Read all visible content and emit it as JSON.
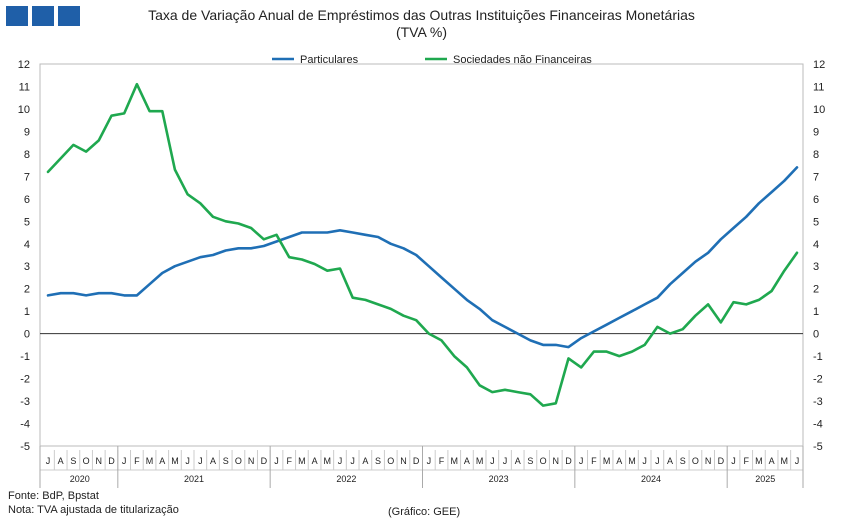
{
  "header": {
    "logo_icon": "gee-logo-icon"
  },
  "chart_data": {
    "type": "line",
    "title": "Taxa de Variação Anual de Empréstimos das Outras Instituições Financeiras Monetárias",
    "subtitle": "(TVA %)",
    "ylim": [
      -5,
      12
    ],
    "yticks": [
      12,
      11,
      10,
      9,
      8,
      7,
      6,
      5,
      4,
      3,
      2,
      1,
      0,
      -1,
      -2,
      -3,
      -4,
      -5
    ],
    "legend_position": "top-center",
    "grid": false,
    "months": [
      "J",
      "A",
      "S",
      "O",
      "N",
      "D",
      "J",
      "F",
      "M",
      "A",
      "M",
      "J",
      "J",
      "A",
      "S",
      "O",
      "N",
      "D",
      "J",
      "F",
      "M",
      "A",
      "M",
      "J",
      "J",
      "A",
      "S",
      "O",
      "N",
      "D",
      "J",
      "F",
      "M",
      "A",
      "M",
      "J",
      "J",
      "A",
      "S",
      "O",
      "N",
      "D",
      "J",
      "F",
      "M",
      "A",
      "M",
      "J",
      "J",
      "A",
      "S",
      "O",
      "N",
      "D",
      "J",
      "F",
      "M",
      "A",
      "M",
      "J"
    ],
    "years": [
      {
        "label": "2020",
        "start": 0,
        "count": 6
      },
      {
        "label": "2021",
        "start": 6,
        "count": 12
      },
      {
        "label": "2022",
        "start": 18,
        "count": 12
      },
      {
        "label": "2023",
        "start": 30,
        "count": 12
      },
      {
        "label": "2024",
        "start": 42,
        "count": 12
      },
      {
        "label": "2025",
        "start": 54,
        "count": 6
      }
    ],
    "series": [
      {
        "name": "Particulares",
        "color": "#1f6fb5",
        "values": [
          1.7,
          1.8,
          1.8,
          1.7,
          1.8,
          1.8,
          1.7,
          1.7,
          2.2,
          2.7,
          3.0,
          3.2,
          3.4,
          3.5,
          3.7,
          3.8,
          3.8,
          3.9,
          4.1,
          4.3,
          4.5,
          4.5,
          4.5,
          4.6,
          4.5,
          4.4,
          4.3,
          4.0,
          3.8,
          3.5,
          3.0,
          2.5,
          2.0,
          1.5,
          1.1,
          0.6,
          0.3,
          0.0,
          -0.3,
          -0.5,
          -0.5,
          -0.6,
          -0.2,
          0.1,
          0.4,
          0.7,
          1.0,
          1.3,
          1.6,
          2.2,
          2.7,
          3.2,
          3.6,
          4.2,
          4.7,
          5.2,
          5.8,
          6.3,
          6.8,
          7.4
        ]
      },
      {
        "name": "Sociedades não Financeiras",
        "color": "#1fa84f",
        "values": [
          7.2,
          7.8,
          8.4,
          8.1,
          8.6,
          9.7,
          9.8,
          11.1,
          9.9,
          9.9,
          7.3,
          6.2,
          5.8,
          5.2,
          5.0,
          4.9,
          4.7,
          4.2,
          4.4,
          3.4,
          3.3,
          3.1,
          2.8,
          2.9,
          1.6,
          1.5,
          1.3,
          1.1,
          0.8,
          0.6,
          0.0,
          -0.3,
          -1.0,
          -1.5,
          -2.3,
          -2.6,
          -2.5,
          -2.6,
          -2.7,
          -3.2,
          -3.1,
          -1.1,
          -1.5,
          -0.8,
          -0.8,
          -1.0,
          -0.8,
          -0.5,
          0.3,
          0.0,
          0.2,
          0.8,
          1.3,
          0.5,
          1.4,
          1.3,
          1.5,
          1.9,
          2.8,
          3.6
        ]
      }
    ]
  },
  "footer": {
    "source": "Fonte: BdP, Bpstat",
    "note": "Nota: TVA ajustada de titularização",
    "credit": "(Gráfico: GEE)"
  }
}
